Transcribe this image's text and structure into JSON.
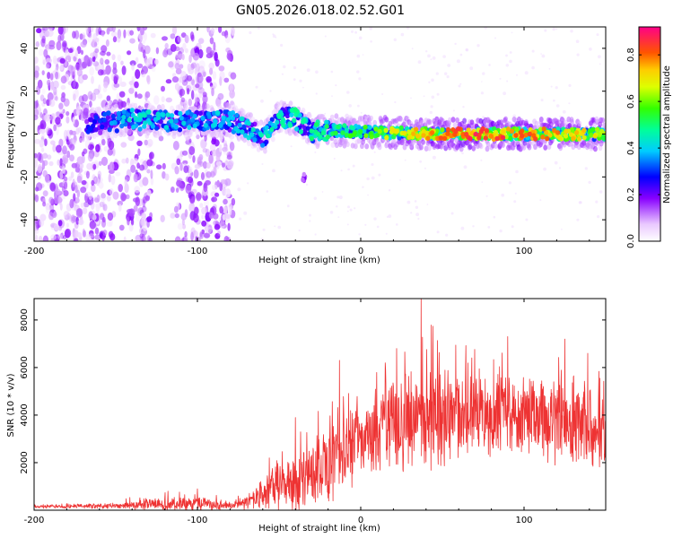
{
  "title": "GN05.2026.018.02.52.G01",
  "chart_data": [
    {
      "type": "heatmap",
      "name": "spectrogram",
      "xlabel": "Height of straight line (km)",
      "ylabel": "Frequency (Hz)",
      "xlim": [
        -200,
        150
      ],
      "ylim": [
        -50,
        50
      ],
      "xticks": [
        -200,
        -100,
        0,
        100
      ],
      "yticks": [
        -40,
        -20,
        0,
        20,
        40
      ],
      "colorbar": {
        "label": "Normalized spectral amplitude",
        "range": [
          0,
          0.92
        ],
        "ticks": [
          0,
          0.2,
          0.4,
          0.6,
          0.8
        ]
      },
      "ridge": [
        {
          "x": -160,
          "y": 5
        },
        {
          "x": -140,
          "y": 7
        },
        {
          "x": -120,
          "y": 6
        },
        {
          "x": -100,
          "y": 6
        },
        {
          "x": -80,
          "y": 6
        },
        {
          "x": -70,
          "y": 3
        },
        {
          "x": -60,
          "y": -2
        },
        {
          "x": -50,
          "y": 8
        },
        {
          "x": -40,
          "y": 7
        },
        {
          "x": -30,
          "y": 1
        },
        {
          "x": -20,
          "y": 2
        },
        {
          "x": 0,
          "y": 1
        },
        {
          "x": 50,
          "y": 0
        },
        {
          "x": 100,
          "y": 0
        },
        {
          "x": 150,
          "y": 0
        }
      ],
      "ridge_amplitude": [
        {
          "x": -160,
          "a": 0.3
        },
        {
          "x": -140,
          "a": 0.45
        },
        {
          "x": -100,
          "a": 0.38
        },
        {
          "x": -60,
          "a": 0.45
        },
        {
          "x": -20,
          "a": 0.5
        },
        {
          "x": 0,
          "a": 0.6
        },
        {
          "x": 40,
          "a": 0.75
        },
        {
          "x": 60,
          "a": 0.85
        },
        {
          "x": 100,
          "a": 0.82
        },
        {
          "x": 150,
          "a": 0.7
        }
      ],
      "secondary_feature": {
        "x": -35,
        "y": -20,
        "amplitude": 0.15
      },
      "noise_region": {
        "x_range": [
          -200,
          -78
        ],
        "amplitude": 0.12
      }
    },
    {
      "type": "line",
      "name": "snr",
      "xlabel": "Height of straight line (km)",
      "ylabel": "SNR (10 * v/v)",
      "xlim": [
        -200,
        150
      ],
      "ylim": [
        0,
        8900
      ],
      "xticks": [
        -200,
        -100,
        0,
        100
      ],
      "yticks": [
        2000,
        4000,
        6000,
        8000
      ],
      "color": "#ee3333",
      "envelope": [
        {
          "x": -200,
          "base": 150,
          "spread": 80
        },
        {
          "x": -150,
          "base": 180,
          "spread": 140
        },
        {
          "x": -130,
          "base": 250,
          "spread": 300
        },
        {
          "x": -100,
          "base": 250,
          "spread": 350
        },
        {
          "x": -80,
          "base": 200,
          "spread": 200
        },
        {
          "x": -65,
          "base": 400,
          "spread": 500
        },
        {
          "x": -50,
          "base": 1200,
          "spread": 1400
        },
        {
          "x": -40,
          "base": 1100,
          "spread": 1500
        },
        {
          "x": -30,
          "base": 1500,
          "spread": 1700
        },
        {
          "x": -20,
          "base": 2000,
          "spread": 2000
        },
        {
          "x": -10,
          "base": 2400,
          "spread": 2000
        },
        {
          "x": 0,
          "base": 2800,
          "spread": 2000
        },
        {
          "x": 20,
          "base": 3400,
          "spread": 2400
        },
        {
          "x": 40,
          "base": 3800,
          "spread": 2600
        },
        {
          "x": 60,
          "base": 3900,
          "spread": 2200
        },
        {
          "x": 80,
          "base": 4000,
          "spread": 2000
        },
        {
          "x": 100,
          "base": 4000,
          "spread": 2000
        },
        {
          "x": 120,
          "base": 3800,
          "spread": 2200
        },
        {
          "x": 150,
          "base": 3600,
          "spread": 2400
        }
      ],
      "peaks": [
        {
          "x": 37,
          "y": 8900
        },
        {
          "x": 22,
          "y": 6800
        },
        {
          "x": 15,
          "y": 6200
        },
        {
          "x": 90,
          "y": 7300
        },
        {
          "x": 125,
          "y": 7200
        },
        {
          "x": 139,
          "y": 6600
        },
        {
          "x": -13,
          "y": 6300
        },
        {
          "x": -40,
          "y": 3900
        },
        {
          "x": -56,
          "y": 2200
        },
        {
          "x": -118,
          "y": 800
        },
        {
          "x": -100,
          "y": 900
        },
        {
          "x": -75,
          "y": 600
        }
      ]
    }
  ]
}
